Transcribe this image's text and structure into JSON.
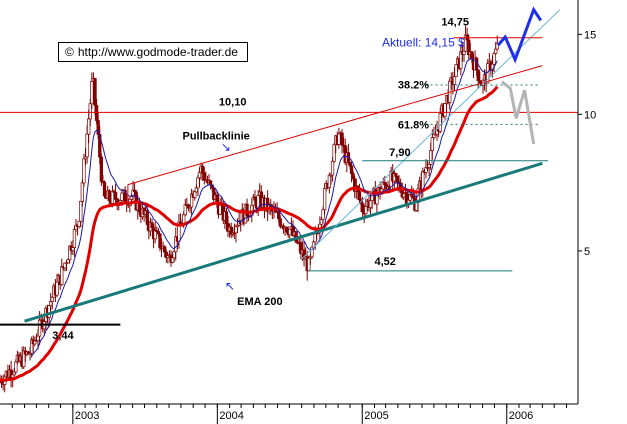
{
  "copyright": {
    "symbol": "©",
    "url": "http://www.godmode-trader.de"
  },
  "current": {
    "label": "Aktuell: 14,15 $"
  },
  "colors": {
    "background": "#ffffff",
    "candle_up": "#ffffff",
    "candle_down": "#8b0000",
    "candle_wick": "#7a0000",
    "ema200": "#e00000",
    "ema_short": "#1a1aa8",
    "trend_channel": "#e00000",
    "support_thick": "#1a7a7a",
    "support_thin": "#6ab6d8",
    "horizontal_red": "#e00000",
    "horizontal_teal": "#1a7a7a",
    "dashed": "#1a7a7a",
    "projection_blue": "#1f2ee8",
    "projection_grey": "#b4b4b4",
    "annotation_blue": "#1f2ee8",
    "axis": "#000000"
  },
  "chart_data": {
    "type": "candlestick",
    "title": "",
    "xlabel": "",
    "ylabel": "",
    "y_scale": "log",
    "y_range": [
      2.3,
      17.5
    ],
    "x_range": [
      "2002-07-01",
      "2006-06-30"
    ],
    "x_ticks": [
      {
        "label": "2003",
        "date": "2003-01-01"
      },
      {
        "label": "2004",
        "date": "2004-01-01"
      },
      {
        "label": "2005",
        "date": "2005-01-01"
      },
      {
        "label": "2006",
        "date": "2006-01-01"
      }
    ],
    "y_ticks": [
      5,
      10,
      15
    ],
    "grid": false,
    "levels": {
      "high_14_75": 14.75,
      "fib_38_2": 11.6,
      "fib_61_8": 9.5,
      "level_10_10": 10.1,
      "level_7_90": 7.9,
      "level_4_52": 4.52,
      "level_3_44": 3.44
    },
    "annotations": [
      {
        "text": "14,75"
      },
      {
        "text": "38.2%"
      },
      {
        "text": "10,10"
      },
      {
        "text": "61.8%"
      },
      {
        "text": "7,90"
      },
      {
        "text": "4,52"
      },
      {
        "text": "3,44"
      },
      {
        "text": "Pullbacklinie"
      },
      {
        "text": "EMA 200"
      }
    ],
    "key_prices": [
      {
        "date": "2002-07-01",
        "value": 2.6
      },
      {
        "date": "2002-09-15",
        "value": 3.0
      },
      {
        "date": "2002-12-01",
        "value": 4.4
      },
      {
        "date": "2003-01-15",
        "value": 5.8
      },
      {
        "date": "2003-02-20",
        "value": 12.0
      },
      {
        "date": "2003-03-20",
        "value": 6.5
      },
      {
        "date": "2003-06-01",
        "value": 6.6
      },
      {
        "date": "2003-09-01",
        "value": 4.8
      },
      {
        "date": "2003-11-20",
        "value": 7.6
      },
      {
        "date": "2004-02-01",
        "value": 5.6
      },
      {
        "date": "2004-04-15",
        "value": 6.5
      },
      {
        "date": "2004-07-01",
        "value": 5.6
      },
      {
        "date": "2004-08-20",
        "value": 4.6
      },
      {
        "date": "2004-11-01",
        "value": 9.1
      },
      {
        "date": "2005-01-01",
        "value": 6.2
      },
      {
        "date": "2005-03-15",
        "value": 7.2
      },
      {
        "date": "2005-05-15",
        "value": 6.4
      },
      {
        "date": "2005-07-20",
        "value": 10.0
      },
      {
        "date": "2005-09-20",
        "value": 14.5
      },
      {
        "date": "2005-11-01",
        "value": 11.6
      },
      {
        "date": "2005-12-10",
        "value": 14.15
      }
    ]
  }
}
